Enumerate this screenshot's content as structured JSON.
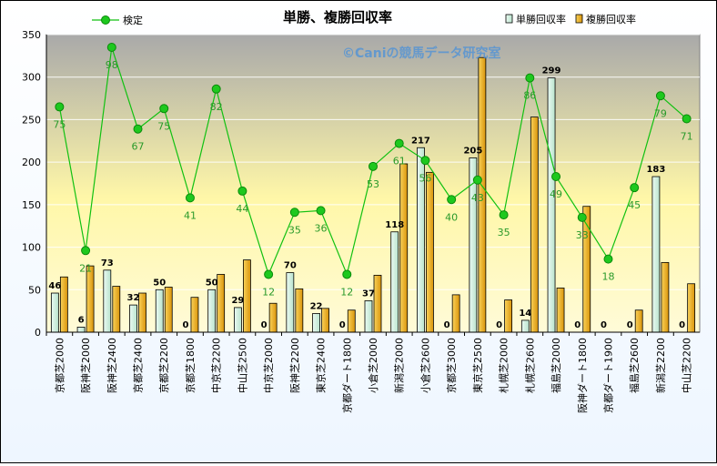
{
  "chart_data": {
    "type": "bar",
    "title": "単勝、複勝回収率",
    "watermark": "©Caniの競馬データ研究室",
    "ylim": [
      0,
      350
    ],
    "yticks": [
      0,
      50,
      100,
      150,
      200,
      250,
      300,
      350
    ],
    "categories": [
      "京都芝2000",
      "阪神芝2000",
      "阪神芝2400",
      "京都芝2400",
      "京都芝2200",
      "京都芝1800",
      "中京芝2200",
      "中山芝2500",
      "中京芝2000",
      "阪神芝2200",
      "東京芝2400",
      "京都ダート1800",
      "小倉芝2000",
      "新潟芝2000",
      "小倉芝2600",
      "京都芝3000",
      "東京芝2500",
      "札幌芝2000",
      "札幌芝2600",
      "福島芝2000",
      "阪神ダート1800",
      "京都ダート1900",
      "福島芝2600",
      "新潟芝2200",
      "中山芝2200"
    ],
    "series": [
      {
        "name": "単勝回収率",
        "kind": "bar",
        "color": "#cdeedd",
        "values": [
          46,
          6,
          73,
          32,
          50,
          0,
          50,
          29,
          0,
          70,
          22,
          0,
          37,
          118,
          217,
          0,
          205,
          0,
          14,
          299,
          0,
          0,
          0,
          183,
          0
        ],
        "labels": [
          "46",
          "6",
          "73",
          "32",
          "50",
          "0",
          "50",
          "29",
          "0",
          "70",
          "22",
          "0",
          "37",
          "118",
          "217",
          "0",
          "205",
          "0",
          "14",
          "299",
          "0",
          "0",
          "0",
          "183",
          "0"
        ]
      },
      {
        "name": "複勝回収率",
        "kind": "bar",
        "color": "#f2b21c",
        "values": [
          65,
          78,
          54,
          46,
          53,
          41,
          68,
          85,
          34,
          51,
          28,
          26,
          67,
          198,
          188,
          44,
          323,
          38,
          253,
          52,
          148,
          0,
          26,
          82,
          57
        ]
      },
      {
        "name": "検定",
        "kind": "line",
        "color": "#11c111",
        "values": [
          265,
          96,
          335,
          239,
          263,
          158,
          286,
          166,
          68,
          141,
          143,
          68,
          195,
          222,
          202,
          156,
          179,
          138,
          299,
          183,
          135,
          86,
          170,
          278,
          251
        ],
        "labels": [
          "75",
          "21",
          "98",
          "67",
          "75",
          "41",
          "82",
          "44",
          "12",
          "35",
          "36",
          "12",
          "53",
          "61",
          "56",
          "40",
          "43",
          "35",
          "86",
          "49",
          "33",
          "18",
          "45",
          "79",
          "71"
        ]
      }
    ]
  }
}
